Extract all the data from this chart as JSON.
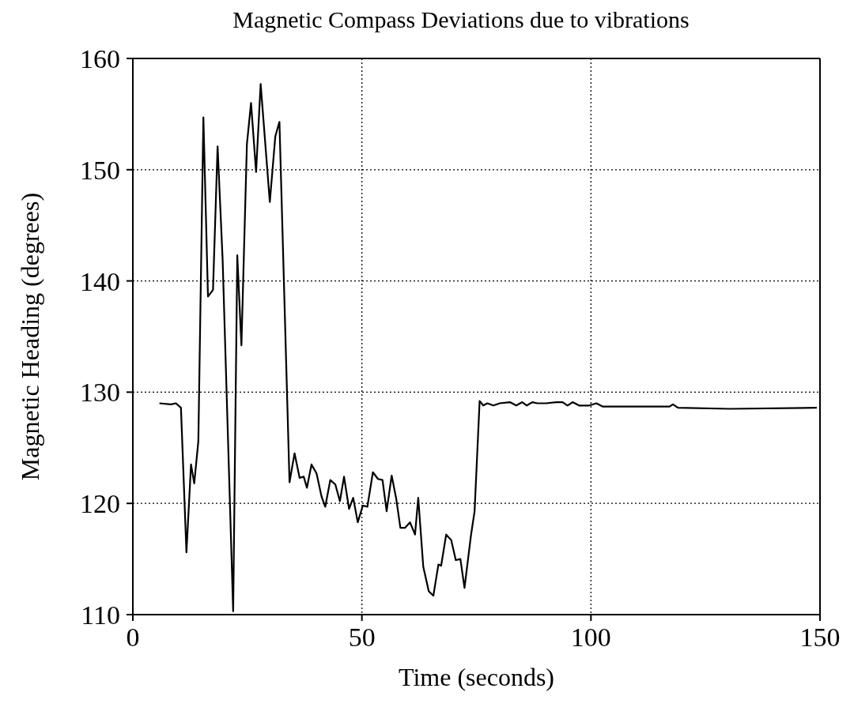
{
  "chart_data": {
    "type": "line",
    "title": "Magnetic Compass Deviations due to vibrations",
    "xlabel": "Time (seconds)",
    "ylabel": "Magnetic Heading (degrees)",
    "xlim": [
      0,
      150
    ],
    "xticks": [
      0,
      50,
      100,
      150
    ],
    "ylim": [
      110,
      160
    ],
    "yticks": [
      110,
      120,
      130,
      140,
      150,
      160
    ],
    "grid": true,
    "line_style": "solid",
    "series": [
      {
        "color": "#000000",
        "x": [
          5.8,
          8.3,
          9.4,
          10.5,
          11.7,
          12.7,
          13.4,
          14.3,
          15.4,
          16.4,
          17.5,
          18.5,
          19.6,
          21.9,
          22.8,
          23.7,
          24.9,
          25.8,
          26.9,
          27.9,
          29.9,
          31.1,
          32.0,
          34.2,
          35.3,
          36.4,
          37.3,
          38.0,
          39.0,
          40.1,
          41.2,
          42.0,
          43.1,
          44.2,
          45.2,
          46.1,
          47.2,
          48.1,
          49.1,
          50.2,
          51.2,
          52.4,
          53.5,
          54.5,
          55.4,
          56.5,
          57.5,
          58.4,
          59.4,
          60.5,
          61.6,
          62.3,
          63.4,
          64.6,
          65.6,
          66.7,
          67.3,
          68.4,
          69.5,
          70.5,
          71.5,
          72.4,
          73.8,
          74.6,
          75.7,
          76.5,
          77.4,
          78.7,
          80.1,
          82.3,
          83.7,
          85.0,
          86.0,
          87.2,
          88.3,
          90.2,
          92.4,
          93.8,
          94.9,
          96.0,
          97.4,
          99.6,
          101.2,
          102.6,
          117.1,
          117.9,
          119.0,
          130.3,
          149.3
        ],
        "values": [
          129,
          128.9,
          129,
          128.6,
          115.6,
          123.5,
          121.8,
          125.6,
          154.7,
          138.6,
          139.2,
          152.1,
          141.9,
          110.3,
          142.3,
          134.2,
          152.3,
          156,
          149.8,
          157.7,
          147.1,
          153,
          154.3,
          121.9,
          124.5,
          122.3,
          122.4,
          121.4,
          123.5,
          122.7,
          120.6,
          119.7,
          122.1,
          121.7,
          120.2,
          122.4,
          119.5,
          120.5,
          118.3,
          119.8,
          119.7,
          122.8,
          122.2,
          122.1,
          119.3,
          122.5,
          120.4,
          117.8,
          117.8,
          118.3,
          117.2,
          120.5,
          114.3,
          112.1,
          111.7,
          114.5,
          114.4,
          117.2,
          116.7,
          114.9,
          115,
          112.4,
          117.1,
          119.3,
          129.2,
          128.8,
          129,
          128.8,
          129,
          129.1,
          128.8,
          129.1,
          128.8,
          129.1,
          129,
          129,
          129.1,
          129.1,
          128.8,
          129.1,
          128.8,
          128.8,
          129,
          128.7,
          128.7,
          128.9,
          128.6,
          128.5,
          128.6
        ]
      }
    ]
  }
}
